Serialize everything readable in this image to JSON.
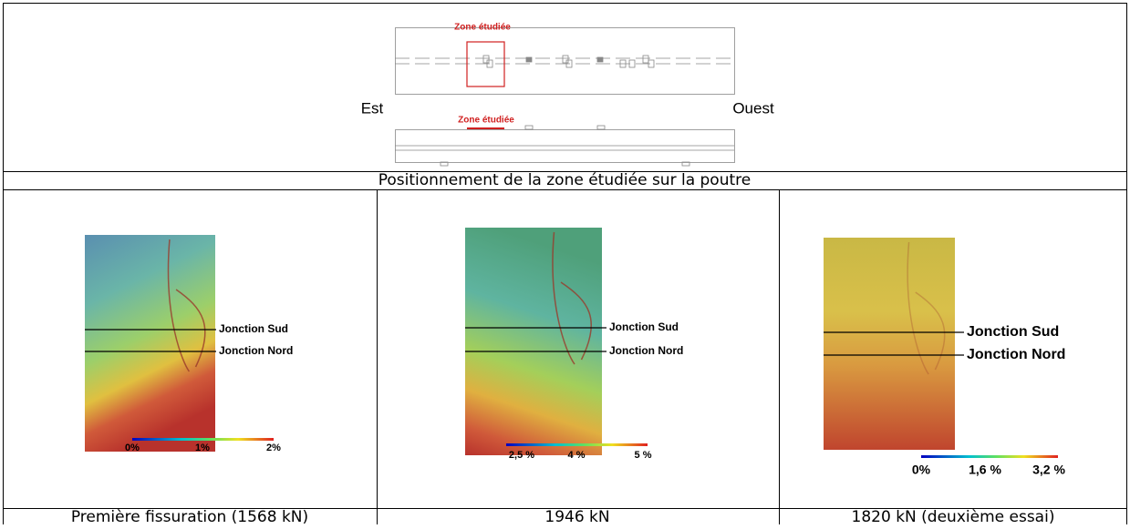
{
  "diagram": {
    "zone_label_plan": "Zone étudiée",
    "zone_label_elevation": "Zone étudiée",
    "east": "Est",
    "west": "Ouest"
  },
  "caption": "Positionnement de la zone étudiée sur la poutre",
  "panels": [
    {
      "junction_south": "Jonction Sud",
      "junction_north": "Jonction Nord",
      "scale_labels": [
        "0%",
        "1%",
        "2%"
      ],
      "caption": "Première fissuration (1568 kN)"
    },
    {
      "junction_south": "Jonction Sud",
      "junction_north": "Jonction Nord",
      "scale_labels": [
        "2,5 %",
        "4 %",
        "5 %"
      ],
      "caption": "1946 kN"
    },
    {
      "junction_south": "Jonction Sud",
      "junction_north": "Jonction Nord",
      "scale_labels": [
        "0%",
        "1,6 %",
        "3,2 %"
      ],
      "caption": "1820 kN (deuxième essai)"
    }
  ]
}
